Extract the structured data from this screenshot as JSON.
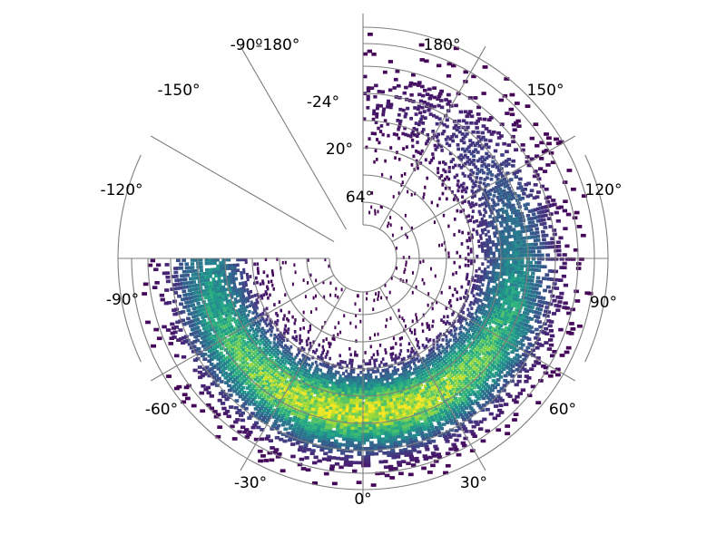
{
  "chart_data": {
    "type": "heatmap",
    "projection": "polar",
    "title": "",
    "theta_range_deg": [
      -90,
      180
    ],
    "r_range_deg": [
      90,
      -90
    ],
    "r_gap_offset_deg": 0,
    "theta_ticks": [
      -90,
      -60,
      -30,
      0,
      30,
      60,
      90,
      120,
      150,
      180
    ],
    "theta_tick_labels": [
      "-90°",
      "-60°",
      "-30°",
      "0°",
      "30°",
      "60°",
      "90°",
      "120°",
      "150°",
      "180°"
    ],
    "overlap_label": "-90º180°",
    "gap_tick_labels": [
      "-24°",
      "20°",
      "64°"
    ],
    "opening_edge_labels": [
      "180°",
      "-150°",
      "-120°",
      "150°",
      "120°"
    ],
    "colormap": "viridis",
    "density_center": {
      "theta_deg": 0,
      "r_deg": -20
    },
    "density_spread": {
      "theta_deg": 45,
      "r_deg": 25
    },
    "grid": true
  }
}
